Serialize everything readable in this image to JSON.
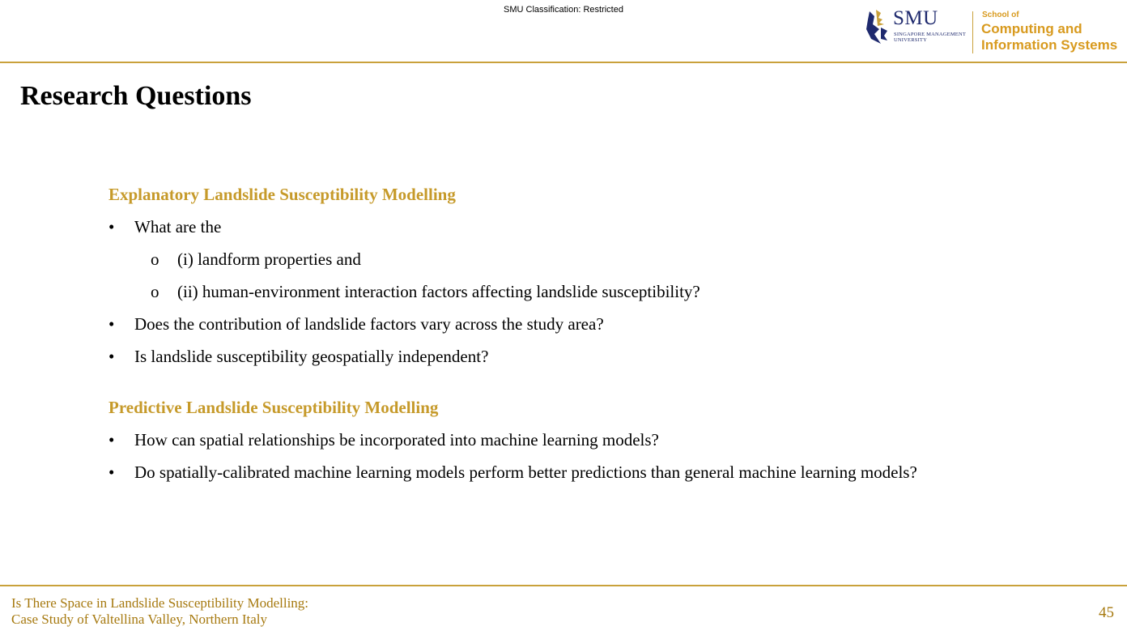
{
  "header": {
    "classification": "SMU Classification: Restricted",
    "logo": {
      "smu": "SMU",
      "smu_sub_line1": "SINGAPORE MANAGEMENT",
      "smu_sub_line2": "UNIVERSITY",
      "school_of": "School of",
      "school_line1": "Computing and",
      "school_line2": "Information Systems",
      "brand_blue": "#1f2a6e",
      "brand_gold": "#d89a1e"
    }
  },
  "slide": {
    "title": "Research Questions",
    "sections": [
      {
        "heading": "Explanatory Landslide Susceptibility Modelling",
        "items": [
          {
            "marker": "•",
            "text": "What are the"
          },
          {
            "marker": "o",
            "text": "(i) landform properties and"
          },
          {
            "marker": "o",
            "text": "(ii) human-environment interaction factors affecting landslide susceptibility?"
          },
          {
            "marker": "•",
            "text": "Does the contribution of landslide factors vary across the study area?"
          },
          {
            "marker": "•",
            "text": "Is landslide susceptibility geospatially independent?"
          }
        ]
      },
      {
        "heading": "Predictive Landslide Susceptibility Modelling",
        "items": [
          {
            "marker": "•",
            "text": "How can spatial relationships be incorporated into machine learning models?"
          },
          {
            "marker": "•",
            "text": "Do spatially-calibrated machine learning models perform better predictions than general machine learning models?"
          }
        ]
      }
    ],
    "accent_color": "#c69a2a"
  },
  "footer": {
    "line1": "Is There Space in Landslide Susceptibility Modelling:",
    "line2": "Case Study of Valtellina Valley, Northern Italy",
    "page_number": "45"
  }
}
